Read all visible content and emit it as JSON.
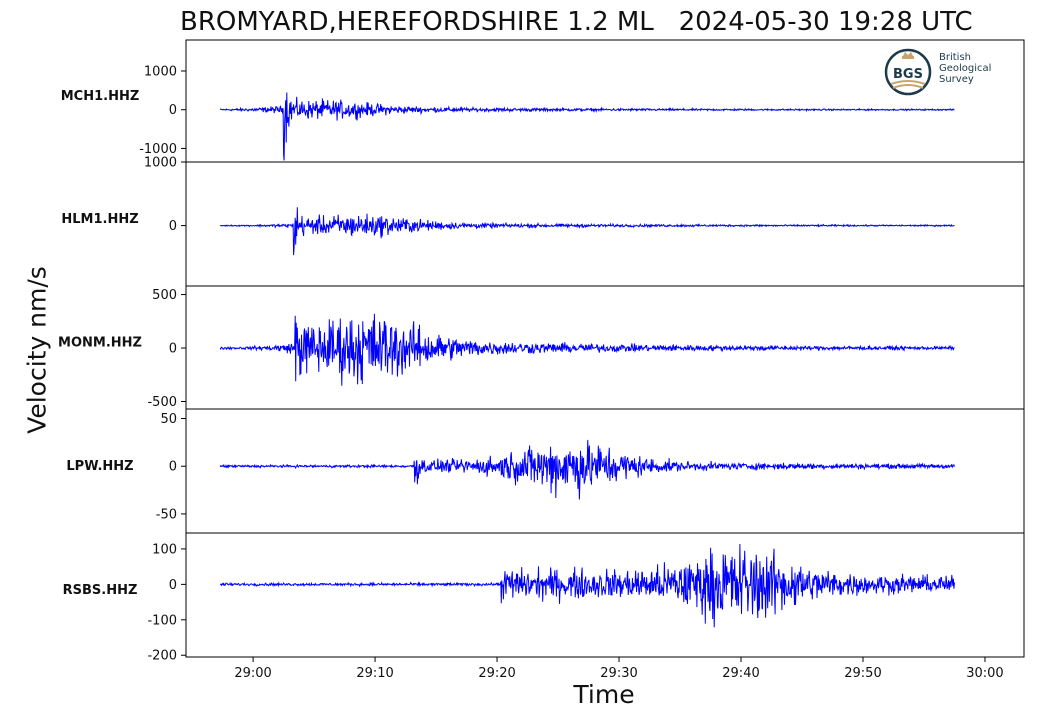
{
  "chart_data": {
    "type": "line",
    "title": "BROMYARD,HEREFORDSHIRE 1.2 ML   2024-05-30 19:28 UTC",
    "xlabel": "Time",
    "ylabel": "Velocity nm/s",
    "x_ticks": [
      "29:00",
      "29:10",
      "29:20",
      "29:30",
      "29:40",
      "29:50",
      "30:00"
    ],
    "x_range_seconds_from_28_00": [
      55.0,
      61.0
    ],
    "line_color": "#0000ff",
    "grid": false,
    "series": [
      {
        "name": "MCH1.HHZ",
        "ylim": [
          -1350,
          1800
        ],
        "y_ticks": [
          1000,
          0,
          -1000
        ],
        "y_tick_labels": [
          "1000",
          "0",
          "-1000"
        ],
        "events": [
          {
            "t": "29:02.5",
            "amp": 1700,
            "kind": "spike"
          },
          {
            "t": "29:06",
            "amp": 400,
            "kind": "coda"
          }
        ]
      },
      {
        "name": "HLM1.HHZ",
        "ylim": [
          -950,
          1000
        ],
        "y_ticks": [
          1000,
          0
        ],
        "y_tick_labels": [
          "1000",
          "0"
        ],
        "events": [
          {
            "t": "29:03.3",
            "amp": 950,
            "kind": "spike"
          },
          {
            "t": "29:09",
            "amp": 300,
            "kind": "coda"
          }
        ]
      },
      {
        "name": "MONM.HHZ",
        "ylim": [
          -570,
          580
        ],
        "y_ticks": [
          500,
          0,
          -500
        ],
        "y_tick_labels": [
          "500",
          "0",
          "-500"
        ],
        "events": [
          {
            "t": "29:03.4",
            "amp": 520,
            "kind": "spike"
          },
          {
            "t": "29:09.5",
            "amp": 560,
            "kind": "coda"
          }
        ]
      },
      {
        "name": "LPW.HHZ",
        "ylim": [
          -70,
          60
        ],
        "y_ticks": [
          50,
          0,
          -50
        ],
        "y_tick_labels": [
          "50",
          "0",
          "-50"
        ],
        "events": [
          {
            "t": "29:13.2",
            "amp": 50,
            "kind": "spike"
          },
          {
            "t": "29:26",
            "amp": 60,
            "kind": "coda"
          }
        ]
      },
      {
        "name": "RSBS.HHZ",
        "ylim": [
          -205,
          145
        ],
        "y_ticks": [
          100,
          0,
          -100,
          -200
        ],
        "y_tick_labels": [
          "100",
          "0",
          "-100",
          "-200"
        ],
        "events": [
          {
            "t": "29:20.3",
            "amp": 80,
            "kind": "onset"
          },
          {
            "t": "29:40",
            "amp": 190,
            "kind": "coda"
          }
        ]
      }
    ]
  },
  "logo": {
    "abbr": "BGS",
    "line1": "British",
    "line2": "Geological",
    "line3": "Survey"
  }
}
